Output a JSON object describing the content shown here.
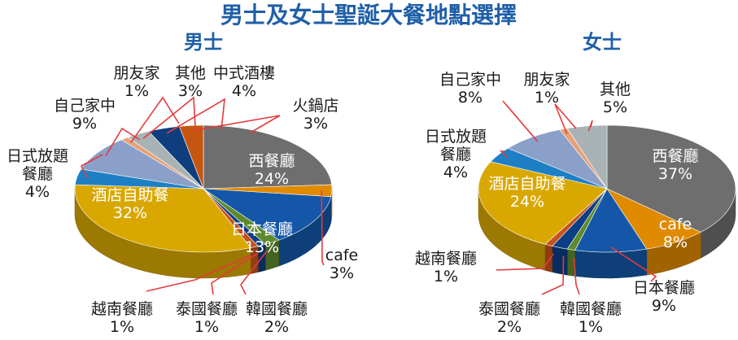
{
  "title": "男士及女士聖誕大餐地點選擇",
  "chart_data": [
    {
      "type": "pie",
      "title": "男士",
      "slices": [
        {
          "name": "西餐廳",
          "value": 24,
          "label": "24%",
          "color": "#6e6e6e"
        },
        {
          "name": "cafe",
          "value": 3,
          "label": "3%",
          "color": "#e08a00"
        },
        {
          "name": "日本餐廳",
          "value": 13,
          "label": "13%",
          "color": "#1457a8"
        },
        {
          "name": "韓國餐廳",
          "value": 2,
          "label": "2%",
          "color": "#5e8a2c"
        },
        {
          "name": "泰國餐廳",
          "value": 1,
          "label": "1%",
          "color": "#0a3f86"
        },
        {
          "name": "越南餐廳",
          "value": 1,
          "label": "1%",
          "color": "#c7521a"
        },
        {
          "name": "酒店自助餐",
          "value": 32,
          "label": "32%",
          "color": "#d9a800"
        },
        {
          "name": "日式放題餐廳",
          "value": 4,
          "label": "4%",
          "color": "#1f7fc4"
        },
        {
          "name": "自己家中",
          "value": 9,
          "label": "9%",
          "color": "#8aa0c8"
        },
        {
          "name": "朋友家",
          "value": 1,
          "label": "1%",
          "color": "#e6a07a"
        },
        {
          "name": "其他",
          "value": 3,
          "label": "3%",
          "color": "#a9b3b6"
        },
        {
          "name": "中式酒樓",
          "value": 4,
          "label": "4%",
          "color": "#0e3e7e"
        },
        {
          "name": "火鍋店",
          "value": 3,
          "label": "3%",
          "color": "#c6560f"
        }
      ]
    },
    {
      "type": "pie",
      "title": "女士",
      "slices": [
        {
          "name": "西餐廳",
          "value": 37,
          "label": "37%",
          "color": "#6e6e6e"
        },
        {
          "name": "cafe",
          "value": 8,
          "label": "8%",
          "color": "#e08a00"
        },
        {
          "name": "日本餐廳",
          "value": 9,
          "label": "9%",
          "color": "#1457a8"
        },
        {
          "name": "韓國餐廳",
          "value": 1,
          "label": "1%",
          "color": "#5e8a2c"
        },
        {
          "name": "泰國餐廳",
          "value": 2,
          "label": "2%",
          "color": "#0a3f86"
        },
        {
          "name": "越南餐廳",
          "value": 1,
          "label": "1%",
          "color": "#c7521a"
        },
        {
          "name": "酒店自助餐",
          "value": 24,
          "label": "24%",
          "color": "#d9a800"
        },
        {
          "name": "日式放題餐廳",
          "value": 4,
          "label": "4%",
          "color": "#1f7fc4"
        },
        {
          "name": "自己家中",
          "value": 8,
          "label": "8%",
          "color": "#8aa0c8"
        },
        {
          "name": "朋友家",
          "value": 1,
          "label": "1%",
          "color": "#e6a07a"
        },
        {
          "name": "其他",
          "value": 5,
          "label": "5%",
          "color": "#a9b3b6"
        }
      ]
    }
  ]
}
